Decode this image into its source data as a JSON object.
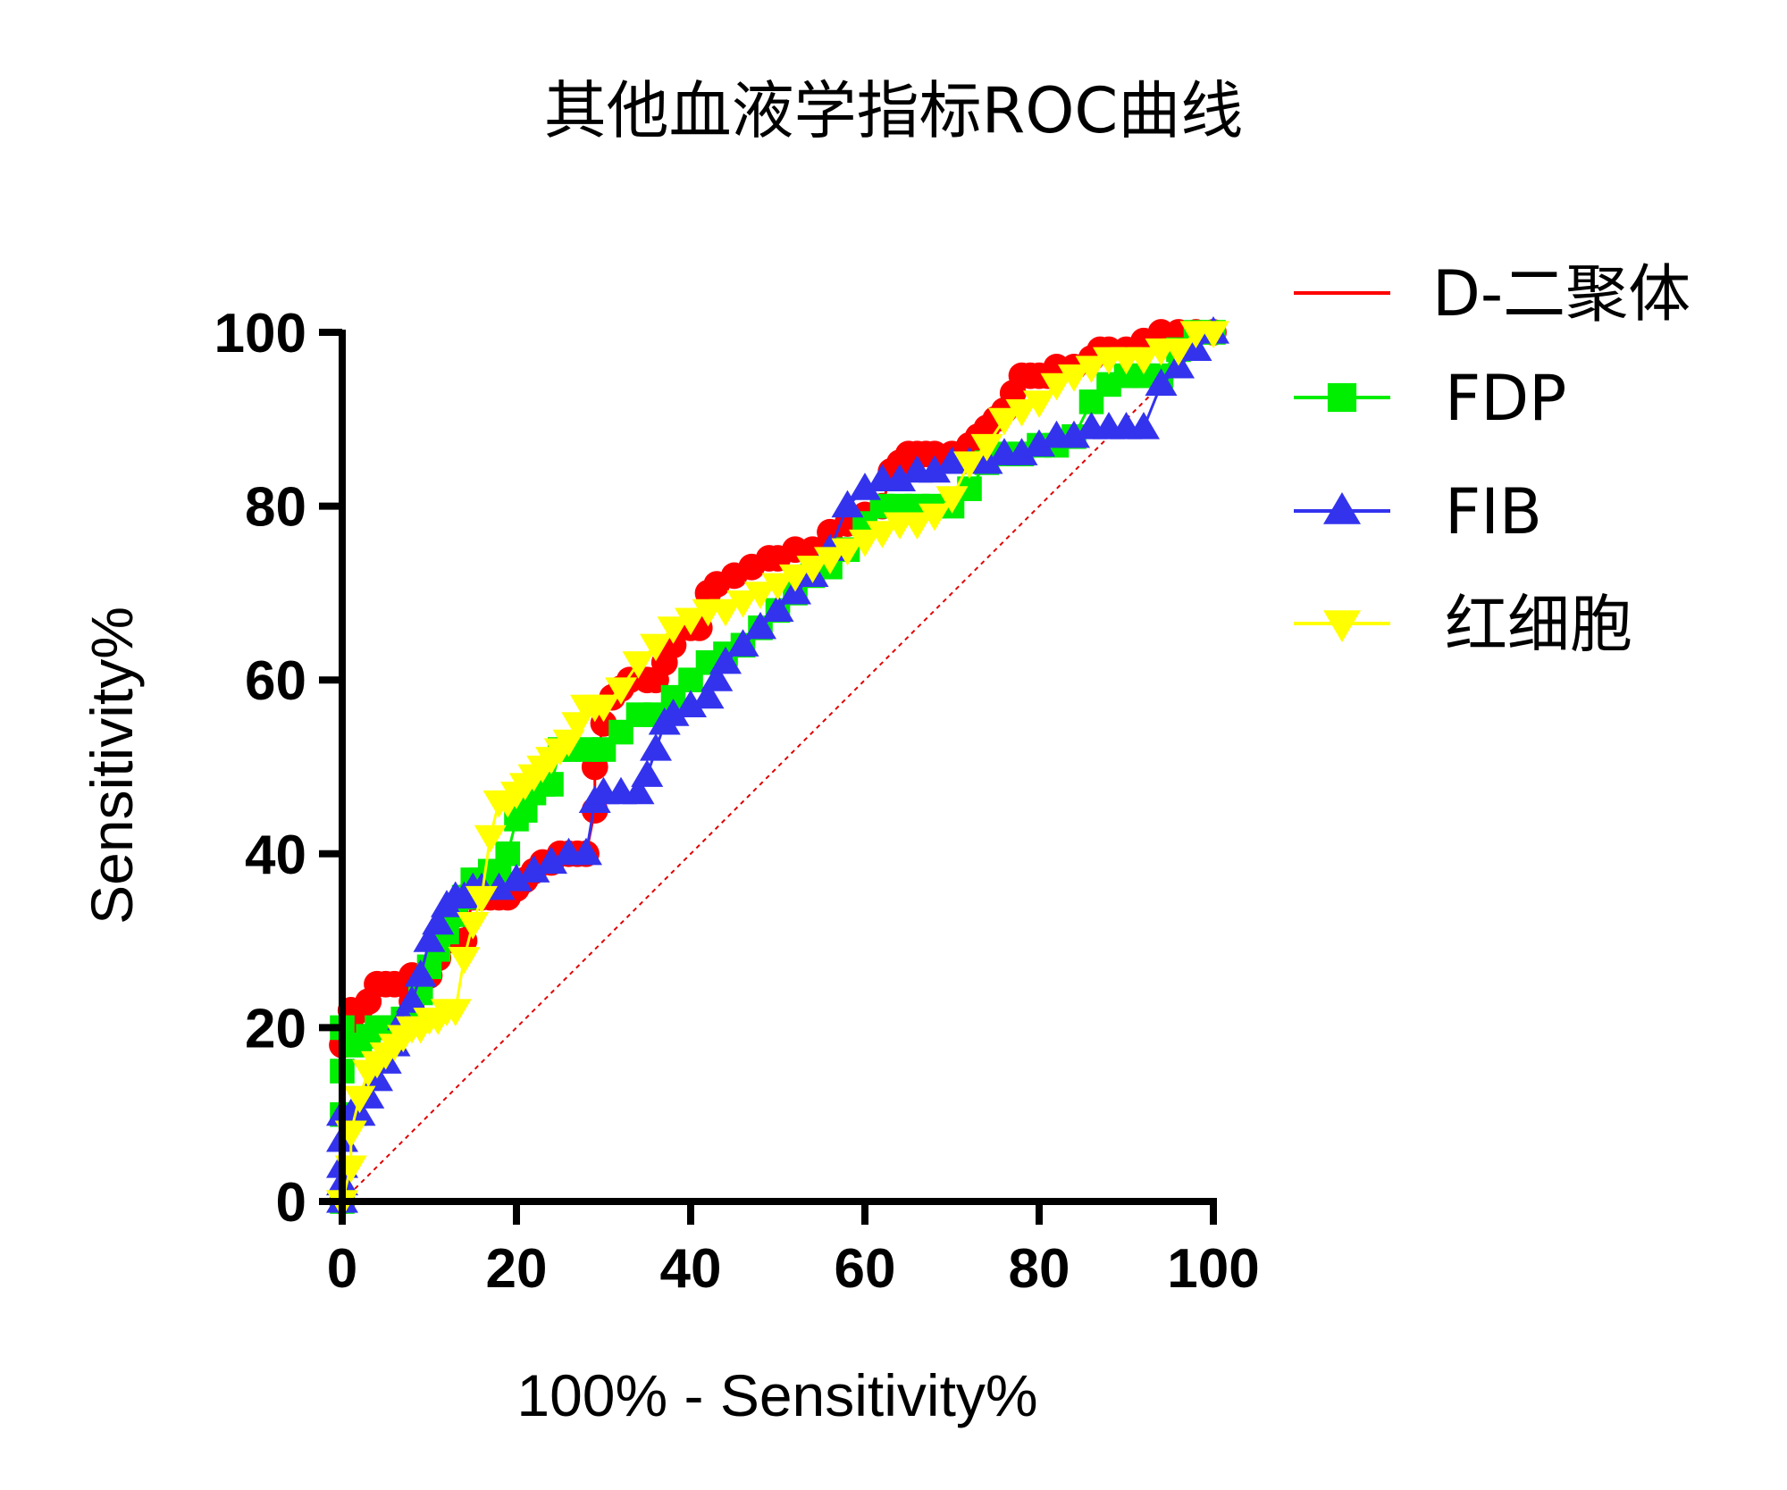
{
  "chart_data": {
    "type": "line",
    "title": "其他血液学指标ROC曲线",
    "xlabel": "100% - Sensitivity%",
    "ylabel": "Sensitivity%",
    "xlim": [
      0,
      100
    ],
    "ylim": [
      0,
      100
    ],
    "xticks": [
      "0",
      "20",
      "40",
      "60",
      "80",
      "100"
    ],
    "yticks": [
      "0",
      "20",
      "40",
      "60",
      "80",
      "100"
    ],
    "grid": false,
    "legend_position": "right",
    "reference_line": {
      "from": [
        0,
        0
      ],
      "to": [
        100,
        100
      ],
      "color": "#e00000",
      "style": "dashed"
    },
    "series": [
      {
        "name": "D-二聚体",
        "color": "#ff0000",
        "marker": "circle",
        "x": [
          0,
          0,
          1,
          1,
          2,
          3,
          4,
          5,
          6,
          7,
          8,
          8,
          10,
          11,
          12,
          13,
          14,
          14,
          15,
          16,
          17,
          18,
          19,
          20,
          21,
          22,
          23,
          24,
          25,
          26,
          27,
          28,
          29,
          29,
          30,
          31,
          32,
          33,
          35,
          36,
          37,
          38,
          40,
          41,
          42,
          43,
          45,
          47,
          49,
          50,
          52,
          54,
          56,
          58,
          60,
          62,
          63,
          64,
          65,
          66,
          67,
          68,
          70,
          71,
          72,
          73,
          74,
          75,
          76,
          77,
          78,
          79,
          80,
          81,
          82,
          84,
          86,
          87,
          88,
          90,
          92,
          94,
          96,
          98,
          100
        ],
        "y": [
          0,
          18,
          20,
          22,
          22,
          23,
          25,
          25,
          25,
          25,
          26,
          23,
          26,
          28,
          30,
          33,
          35,
          30,
          35,
          35,
          35,
          35,
          35,
          36,
          37,
          38,
          39,
          39,
          40,
          40,
          40,
          40,
          45,
          50,
          55,
          58,
          59,
          60,
          60,
          60,
          62,
          64,
          66,
          66,
          70,
          71,
          72,
          73,
          74,
          74,
          75,
          75,
          77,
          78,
          79,
          80,
          84,
          85,
          86,
          86,
          86,
          86,
          86,
          86,
          87,
          88,
          89,
          90,
          91,
          93,
          95,
          95,
          95,
          95,
          96,
          96,
          97,
          98,
          98,
          98,
          99,
          100,
          100,
          100,
          100
        ]
      },
      {
        "name": "FDP",
        "color": "#00ee00",
        "marker": "square",
        "x": [
          0,
          0,
          0,
          0,
          1,
          2,
          3,
          4,
          5,
          6,
          7,
          8,
          9,
          10,
          11,
          12,
          13,
          14,
          15,
          16,
          17,
          18,
          19,
          20,
          21,
          22,
          23,
          24,
          25,
          26,
          28,
          30,
          32,
          34,
          36,
          38,
          40,
          42,
          44,
          46,
          48,
          50,
          52,
          54,
          56,
          58,
          60,
          62,
          64,
          66,
          68,
          70,
          72,
          74,
          76,
          78,
          80,
          82,
          84,
          86,
          88,
          90,
          92,
          94,
          96,
          98,
          100
        ],
        "y": [
          0,
          10,
          15,
          20,
          18,
          18,
          19,
          20,
          20,
          20,
          21,
          21,
          24,
          27,
          29,
          31,
          33,
          35,
          37,
          37,
          38,
          38,
          40,
          44,
          45,
          47,
          48,
          48,
          52,
          52,
          52,
          52,
          54,
          56,
          56,
          58,
          60,
          62,
          63,
          64,
          66,
          68,
          70,
          72,
          73,
          75,
          78,
          80,
          80,
          80,
          80,
          80,
          82,
          85,
          86,
          86,
          87,
          87,
          88,
          92,
          94,
          95,
          95,
          95,
          98,
          100,
          100
        ]
      },
      {
        "name": "FIB",
        "color": "#3333ee",
        "marker": "triangle-up",
        "x": [
          0,
          0,
          0,
          0,
          0,
          1,
          2,
          3,
          4,
          5,
          6,
          7,
          8,
          9,
          10,
          11,
          12,
          13,
          14,
          15,
          16,
          18,
          20,
          22,
          24,
          26,
          28,
          29,
          30,
          32,
          34,
          35,
          36,
          37,
          38,
          40,
          42,
          43,
          44,
          46,
          48,
          50,
          52,
          54,
          56,
          58,
          60,
          62,
          64,
          66,
          68,
          70,
          72,
          74,
          76,
          78,
          80,
          82,
          84,
          86,
          88,
          90,
          92,
          94,
          96,
          98,
          100
        ],
        "y": [
          0,
          2,
          4,
          7,
          10,
          10,
          10,
          12,
          14,
          16,
          18,
          21,
          23,
          26,
          30,
          32,
          34,
          35,
          35,
          36,
          36,
          36,
          37,
          38,
          39,
          40,
          40,
          46,
          47,
          47,
          47,
          49,
          52,
          55,
          56,
          57,
          58,
          60,
          62,
          64,
          66,
          68,
          70,
          72,
          75,
          80,
          82,
          83,
          83,
          84,
          84,
          85,
          85,
          85,
          86,
          86,
          87,
          88,
          88,
          89,
          89,
          89,
          89,
          94,
          96,
          98,
          100
        ]
      },
      {
        "name": "红细胞",
        "color": "#ffff00",
        "marker": "triangle-down",
        "x": [
          0,
          0,
          1,
          1,
          2,
          3,
          4,
          5,
          6,
          7,
          8,
          9,
          10,
          11,
          12,
          13,
          14,
          15,
          16,
          17,
          18,
          19,
          20,
          21,
          22,
          23,
          24,
          25,
          26,
          27,
          28,
          29,
          30,
          32,
          34,
          36,
          38,
          40,
          42,
          44,
          46,
          48,
          50,
          52,
          54,
          56,
          58,
          60,
          62,
          64,
          66,
          68,
          70,
          72,
          74,
          76,
          78,
          80,
          82,
          84,
          86,
          88,
          90,
          92,
          94,
          96,
          98,
          100
        ],
        "y": [
          0,
          0,
          4,
          8,
          12,
          15,
          16,
          17,
          18,
          19,
          20,
          20,
          21,
          21,
          22,
          22,
          28,
          32,
          35,
          42,
          46,
          46,
          47,
          48,
          49,
          50,
          51,
          52,
          53,
          55,
          57,
          57,
          57,
          59,
          62,
          64,
          66,
          67,
          68,
          68,
          69,
          70,
          71,
          72,
          73,
          74,
          75,
          76,
          77,
          78,
          78,
          79,
          81,
          85,
          87,
          90,
          91,
          92,
          94,
          95,
          96,
          97,
          97,
          97,
          98,
          98,
          100,
          100
        ]
      }
    ]
  }
}
